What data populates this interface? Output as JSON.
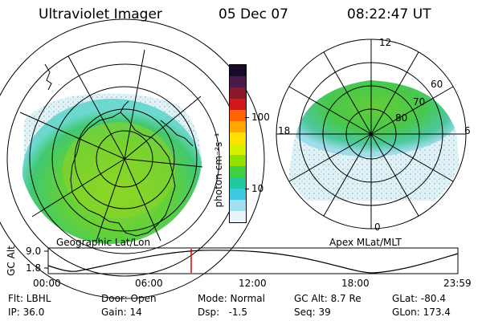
{
  "header": {
    "title": "Ultraviolet Imager",
    "date": "05 Dec 07",
    "time": "08:22:47 UT"
  },
  "left_map": {
    "caption": "Geographic Lat/Lon"
  },
  "right_map": {
    "caption": "Apex MLat/MLT",
    "mlt_labels": {
      "top": "12",
      "bottom": "0",
      "left": "18",
      "right": "6"
    },
    "lat_labels": [
      "60",
      "70",
      "80"
    ]
  },
  "colorbar": {
    "unit_label": "photon cm⁻²s⁻¹",
    "ticks": [
      "100",
      "10"
    ],
    "colors": [
      "#1a0a2a",
      "#4a1a4a",
      "#8a1a2a",
      "#d01818",
      "#ff6600",
      "#ffa800",
      "#ffe000",
      "#d8f000",
      "#90e000",
      "#40d040",
      "#20c8a0",
      "#40c8e0",
      "#a0e0f0",
      "#e8f4f8"
    ]
  },
  "orbit_plot": {
    "y_title": "GC Alt",
    "y_ticks": [
      "9.0",
      "1.8"
    ],
    "x_ticks": [
      "00:00",
      "06:00",
      "12:00",
      "18:00",
      "23:59"
    ],
    "marker_fraction": 0.349
  },
  "info": {
    "row1": [
      {
        "text": "Flt: LBHL"
      },
      {
        "text": "Door: Open"
      },
      {
        "text": "Mode: Normal"
      },
      {
        "text": "GC Alt: 8.7 Re"
      },
      {
        "text": "GLat: -80.4"
      }
    ],
    "row2": [
      {
        "text": "IP: 36.0"
      },
      {
        "text": "Gain: 14"
      },
      {
        "text": "Dsp:   -1.5"
      },
      {
        "text": "Seq: 39"
      },
      {
        "text": "GLon: 173.4"
      }
    ]
  }
}
